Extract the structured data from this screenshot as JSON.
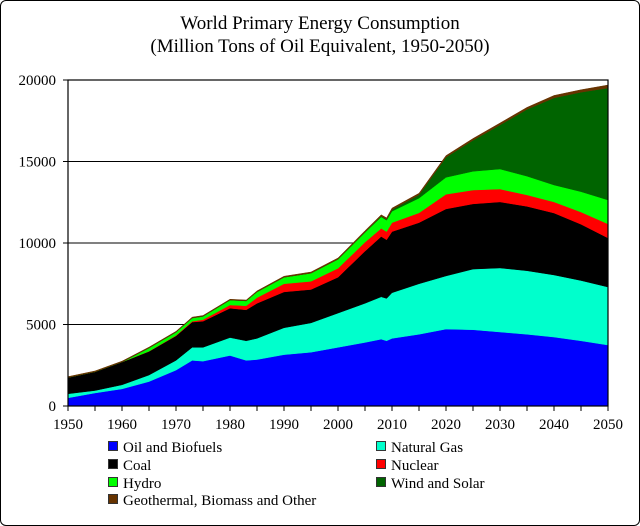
{
  "chart_data": {
    "type": "area",
    "stacked": true,
    "title": "World Primary Energy Consumption",
    "subtitle": "(Million Tons of Oil Equivalent, 1950-2050)",
    "xlabel": "",
    "ylabel": "",
    "xlim": [
      1950,
      2050
    ],
    "ylim": [
      0,
      20000
    ],
    "x_ticks": [
      1950,
      1960,
      1970,
      1980,
      1990,
      2000,
      2010,
      2020,
      2030,
      2040,
      2050
    ],
    "y_ticks": [
      0,
      5000,
      10000,
      15000,
      20000
    ],
    "grid": "horizontal",
    "legend_position": "bottom",
    "x": [
      1950,
      1955,
      1960,
      1965,
      1970,
      1973,
      1975,
      1980,
      1983,
      1985,
      1990,
      1995,
      2000,
      2005,
      2008,
      2009,
      2010,
      2015,
      2020,
      2025,
      2030,
      2035,
      2040,
      2045,
      2050
    ],
    "series": [
      {
        "name": "Oil and Biofuels",
        "color": "#0000FF",
        "values": [
          500,
          800,
          1050,
          1500,
          2200,
          2800,
          2750,
          3100,
          2800,
          2850,
          3150,
          3300,
          3600,
          3900,
          4100,
          4000,
          4150,
          4400,
          4720,
          4680,
          4540,
          4400,
          4230,
          4000,
          3740
        ]
      },
      {
        "name": "Natural Gas",
        "color": "#00FFCC",
        "values": [
          250,
          150,
          250,
          400,
          600,
          800,
          850,
          1100,
          1200,
          1300,
          1650,
          1800,
          2100,
          2400,
          2600,
          2600,
          2800,
          3100,
          3260,
          3720,
          3930,
          3900,
          3810,
          3700,
          3560
        ]
      },
      {
        "name": "Coal",
        "color": "#000000",
        "values": [
          1000,
          1150,
          1400,
          1450,
          1500,
          1550,
          1600,
          1800,
          1900,
          2150,
          2200,
          2050,
          2200,
          3200,
          3700,
          3600,
          3750,
          3750,
          4110,
          4000,
          4050,
          3950,
          3800,
          3450,
          3010
        ]
      },
      {
        "name": "Nuclear",
        "color": "#FF0000",
        "values": [
          0,
          0,
          0,
          10,
          30,
          50,
          100,
          200,
          250,
          350,
          500,
          500,
          550,
          550,
          500,
          500,
          550,
          600,
          900,
          850,
          790,
          700,
          680,
          750,
          860
        ]
      },
      {
        "name": "Hydro",
        "color": "#00FF00",
        "values": [
          0,
          0,
          0,
          200,
          200,
          200,
          200,
          300,
          300,
          350,
          400,
          500,
          550,
          600,
          700,
          700,
          700,
          900,
          1040,
          1150,
          1230,
          1150,
          1040,
          1250,
          1470
        ]
      },
      {
        "name": "Wind and Solar",
        "color": "#006400",
        "values": [
          0,
          0,
          0,
          0,
          0,
          0,
          0,
          0,
          0,
          0,
          0,
          0,
          10,
          20,
          50,
          60,
          100,
          200,
          1230,
          1900,
          2700,
          4100,
          5340,
          6100,
          6870
        ]
      },
      {
        "name": "Geothermal, Biomass and Other",
        "color": "#663300",
        "values": [
          50,
          50,
          50,
          50,
          50,
          50,
          50,
          50,
          50,
          60,
          60,
          70,
          70,
          80,
          80,
          80,
          90,
          100,
          100,
          110,
          120,
          120,
          150,
          150,
          180
        ]
      }
    ]
  }
}
